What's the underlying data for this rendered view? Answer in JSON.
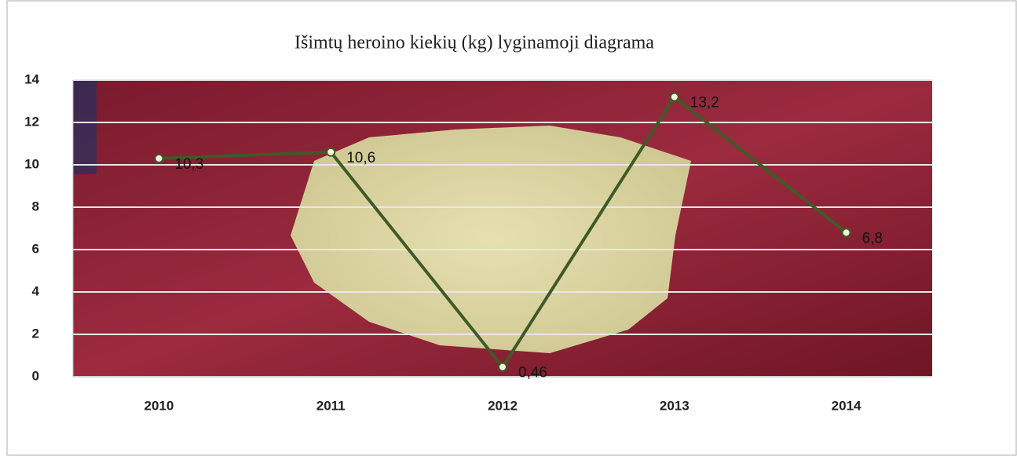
{
  "chart_data": {
    "type": "line",
    "title": "Išimtų heroino kiekių (kg) lyginamoji  diagrama",
    "categories": [
      "2010",
      "2011",
      "2012",
      "2013",
      "2014"
    ],
    "values": [
      10.3,
      10.6,
      0.46,
      13.2,
      6.8
    ],
    "value_labels": [
      "10,3",
      "10,6",
      "0,46",
      "13,2",
      "6,8"
    ],
    "color": "#3f5a28",
    "ylim": [
      0,
      14
    ],
    "yticks": [
      0,
      2,
      4,
      6,
      8,
      10,
      12,
      14
    ],
    "grid": true
  }
}
